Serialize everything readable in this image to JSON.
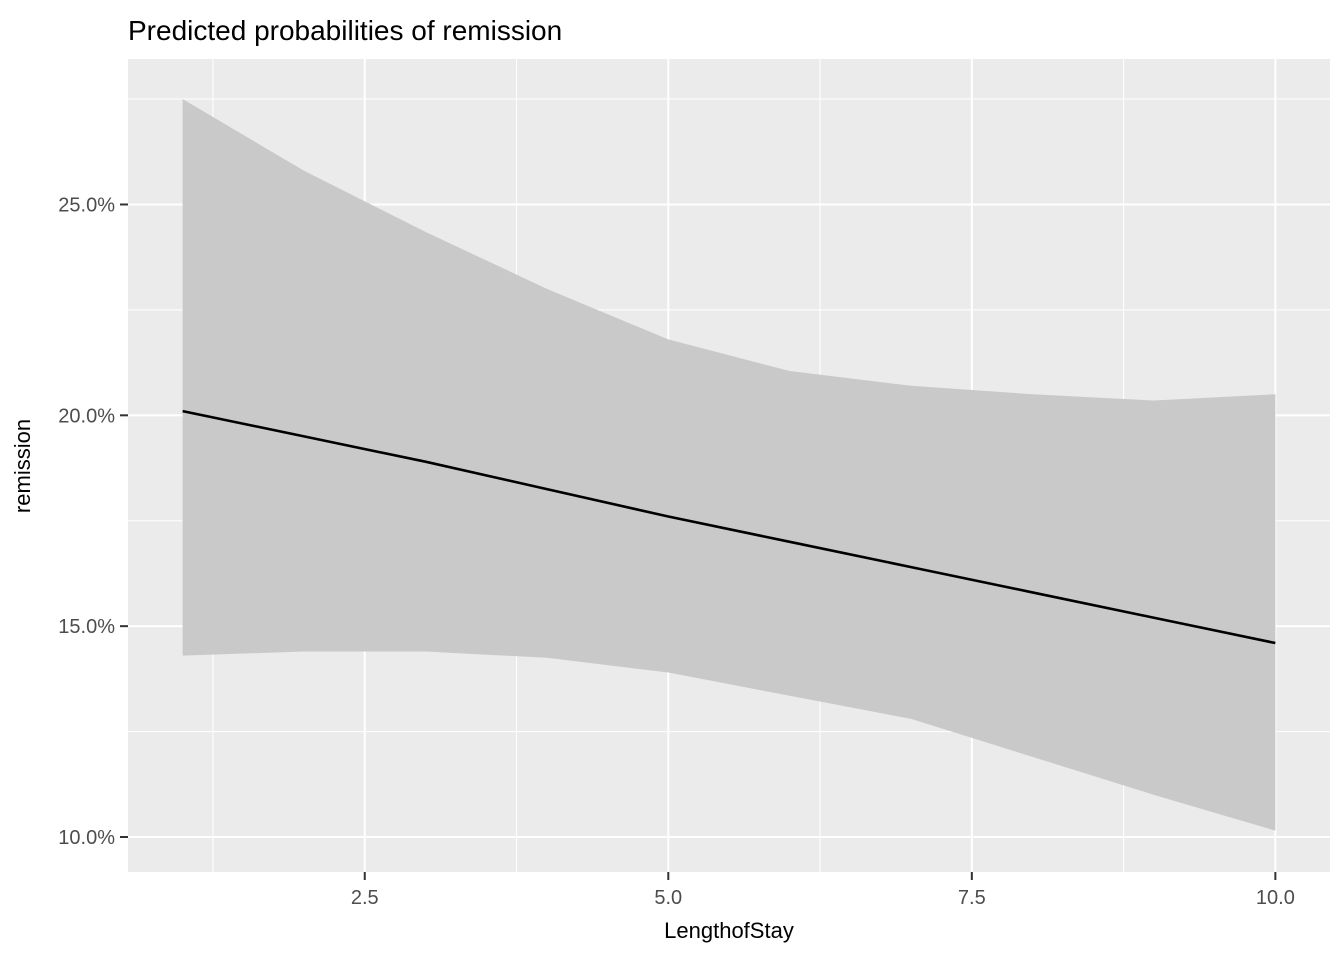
{
  "title": "Predicted probabilities of remission",
  "colors": {
    "page_bg": "#FFFFFF",
    "panel_bg": "#EBEBEB",
    "grid": "#FFFFFF",
    "ribbon": "#C9C9C9",
    "line": "#000000",
    "tick": "#333333",
    "tick_label": "#4D4D4D",
    "axis_title": "#000000",
    "title_color": "#000000"
  },
  "chart_data": {
    "type": "line",
    "title": "Predicted probabilities of remission",
    "xlabel": "LengthofStay",
    "ylabel": "remission",
    "units": "percent",
    "grid": true,
    "legend": false,
    "xlim": [
      0.55,
      10.45
    ],
    "ylim": [
      9.17,
      28.45
    ],
    "x_ticks": [
      2.5,
      5.0,
      7.5,
      10.0
    ],
    "x_tick_labels": [
      "2.5",
      "5.0",
      "7.5",
      "10.0"
    ],
    "y_ticks": [
      10,
      15,
      20,
      25
    ],
    "y_tick_labels": [
      "10.0%",
      "15.0%",
      "20.0%",
      "25.0%"
    ],
    "x_minor": [
      1.25,
      3.75,
      6.25,
      8.75
    ],
    "y_minor": [
      12.5,
      17.5,
      22.5,
      27.5
    ],
    "x": [
      1,
      2,
      3,
      4,
      5,
      6,
      7,
      8,
      9,
      10
    ],
    "series": [
      {
        "name": "predicted_probability",
        "role": "fit",
        "values": [
          20.1,
          19.5,
          18.9,
          18.25,
          17.6,
          17.0,
          16.4,
          15.8,
          15.2,
          14.6
        ]
      },
      {
        "name": "ci_upper",
        "role": "ribbon_upper",
        "values": [
          27.5,
          25.8,
          24.35,
          23.0,
          21.8,
          21.05,
          20.7,
          20.5,
          20.35,
          20.5
        ]
      },
      {
        "name": "ci_lower",
        "role": "ribbon_lower",
        "values": [
          14.3,
          14.4,
          14.4,
          14.25,
          13.9,
          13.35,
          12.8,
          11.9,
          11.0,
          10.15
        ]
      }
    ]
  }
}
